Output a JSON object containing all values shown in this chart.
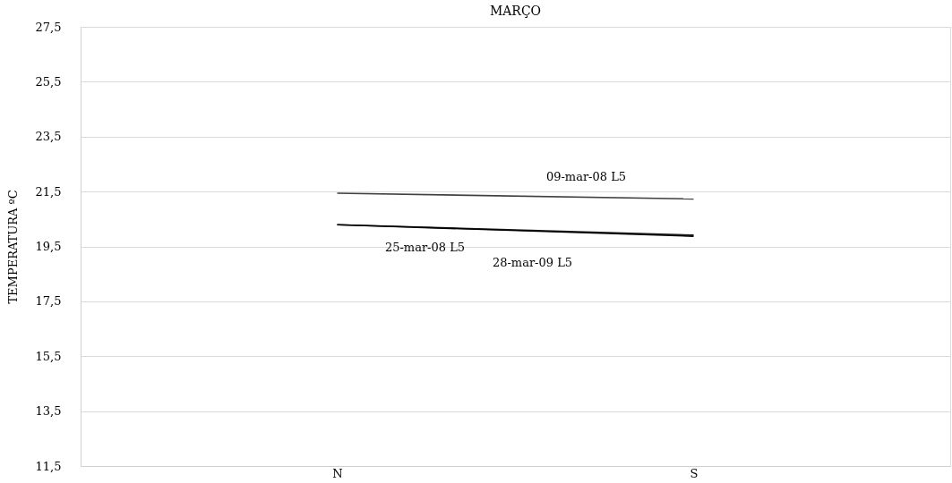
{
  "chart_data": {
    "type": "line",
    "title": "MARÇO",
    "ylabel": "TEMPERATURA ºC",
    "categories": [
      "N",
      "S"
    ],
    "series": [
      {
        "name": "09-mar-08 L5",
        "color": "#404040",
        "values": [
          21.44,
          21.23
        ]
      },
      {
        "name": "25-mar-08 L5",
        "color": "#202020",
        "values": [
          20.29,
          19.91
        ]
      },
      {
        "name": "28-mar-09 L5",
        "color": "#000000",
        "values": [
          20.29,
          19.87
        ]
      }
    ],
    "ylim": [
      11.5,
      27.5
    ],
    "yticks": [
      {
        "value": 11.5,
        "label": "11,5"
      },
      {
        "value": 13.5,
        "label": "13,5"
      },
      {
        "value": 15.5,
        "label": "15,5"
      },
      {
        "value": 17.5,
        "label": "17,5"
      },
      {
        "value": 19.5,
        "label": "19,5"
      },
      {
        "value": 21.5,
        "label": "21,5"
      },
      {
        "value": 23.5,
        "label": "23,5"
      },
      {
        "value": 25.5,
        "label": "25,5"
      },
      {
        "value": 27.5,
        "label": "27,5"
      }
    ],
    "grid": "y",
    "marker": "none",
    "line_style": "solid"
  }
}
